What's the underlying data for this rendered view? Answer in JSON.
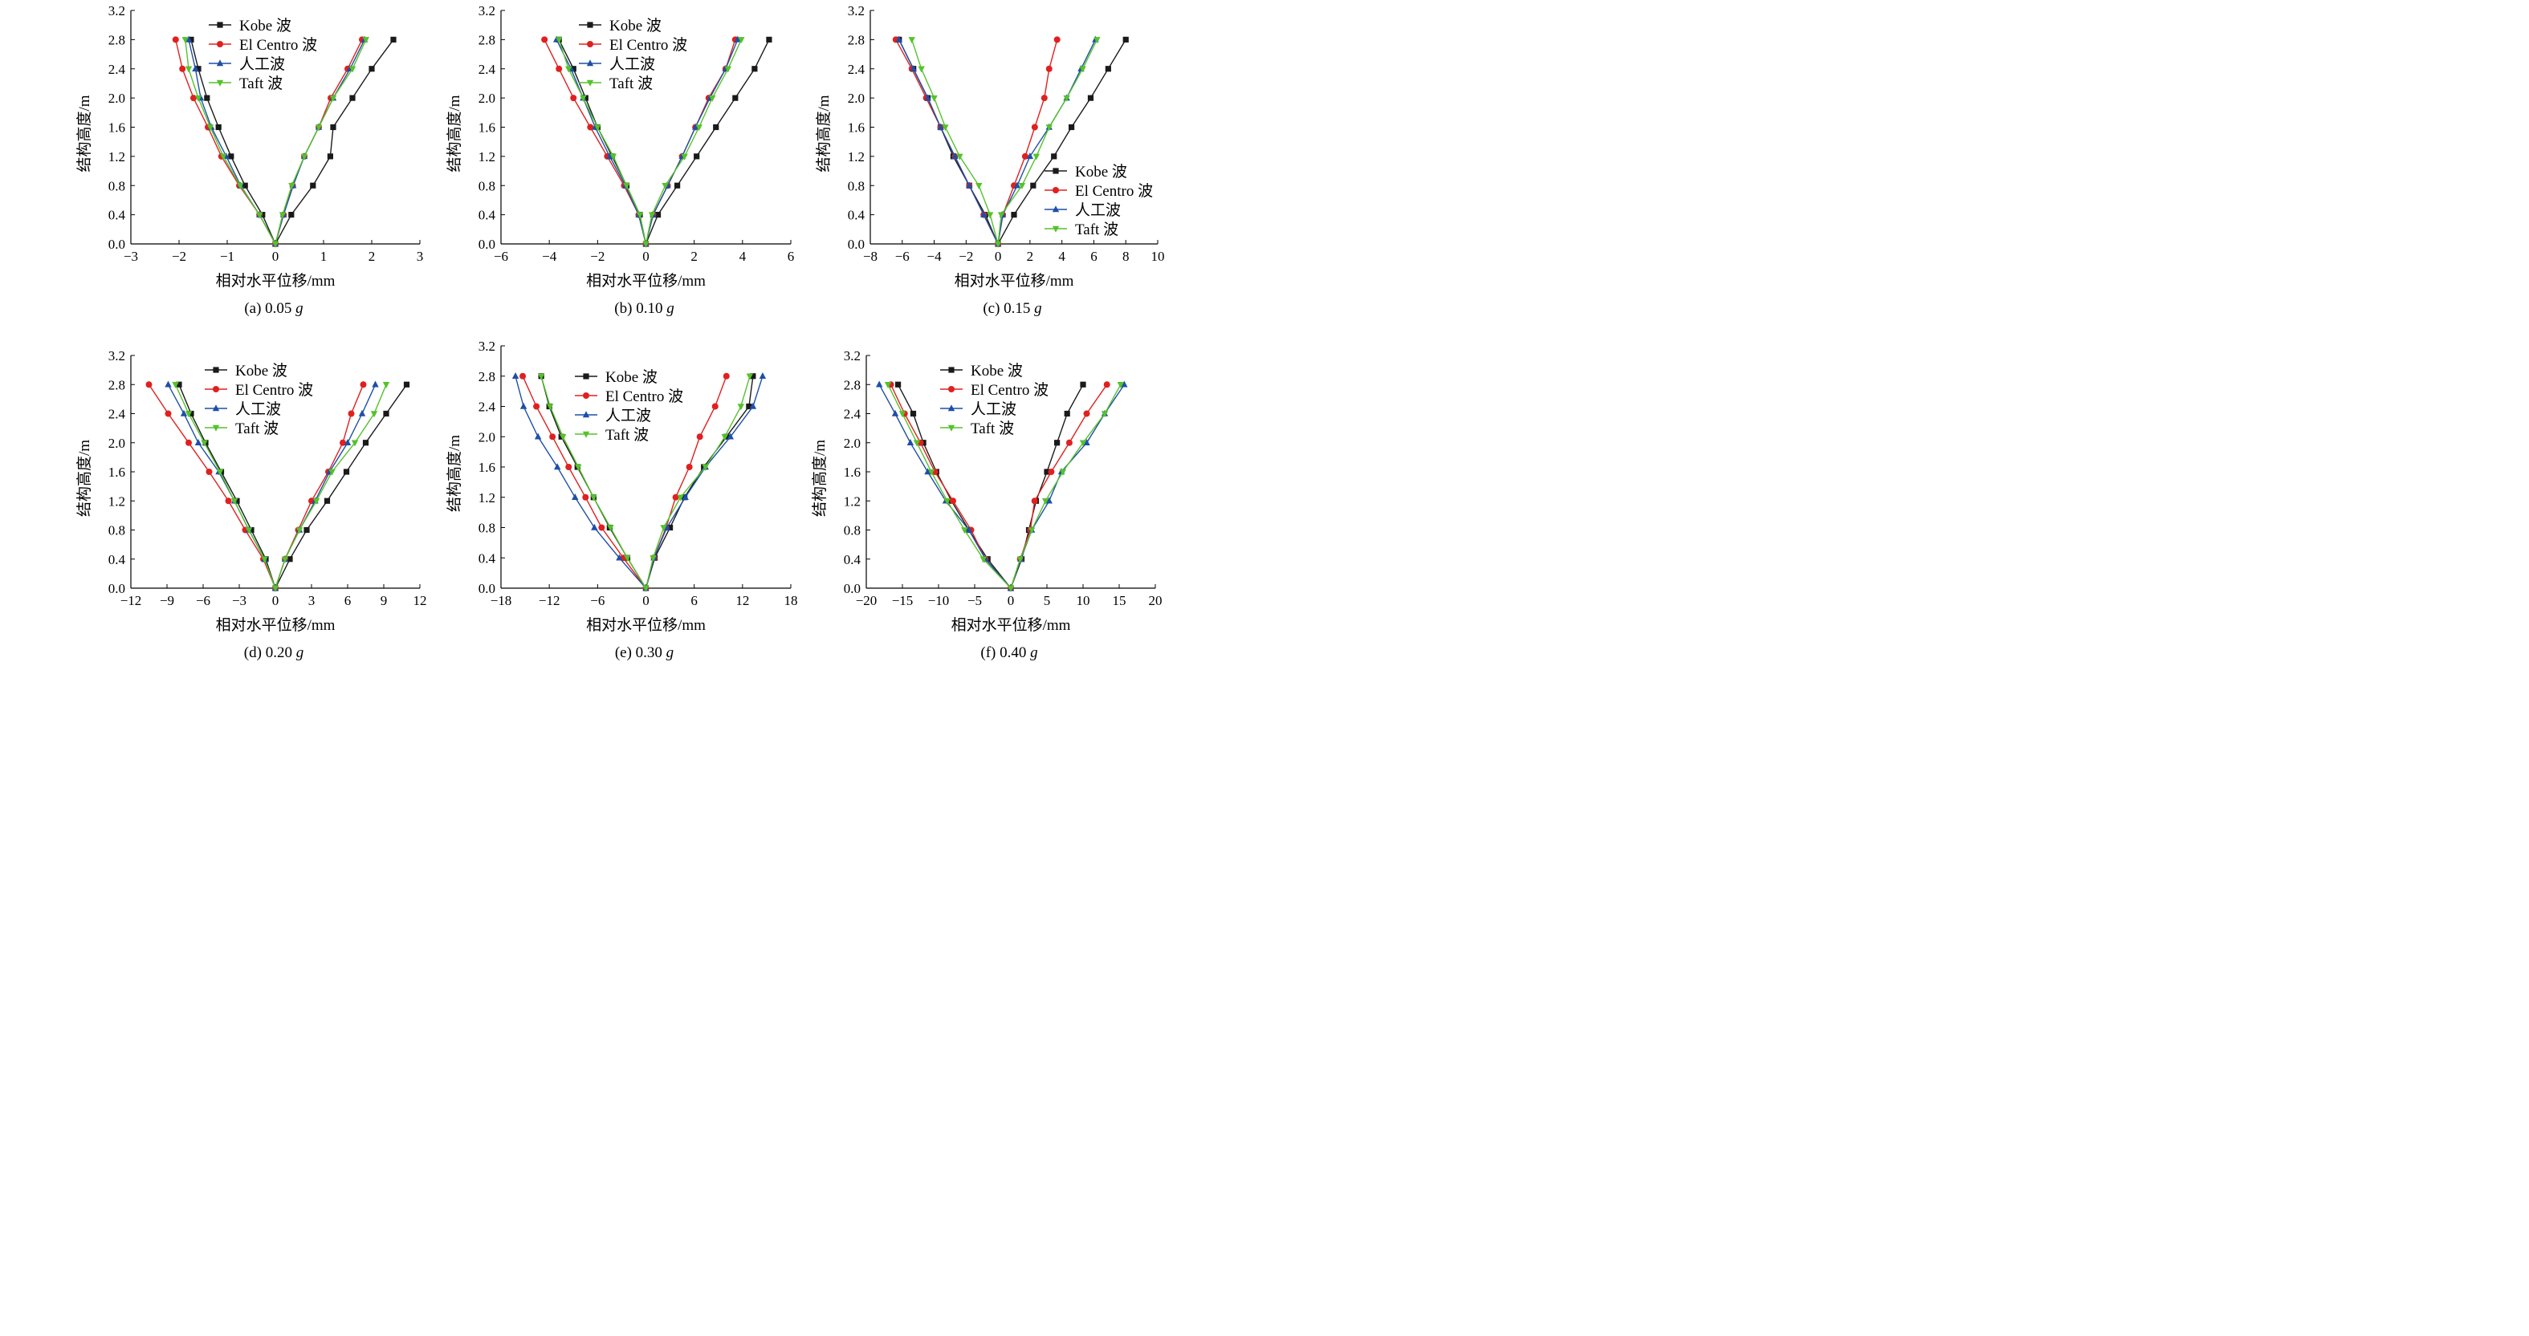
{
  "colors": {
    "kobe": "#1a1a1a",
    "elcentro": "#e02020",
    "artificial": "#1e4fa8",
    "taft": "#55c22b",
    "axis": "#000000"
  },
  "chart_data": [
    {
      "type": "line",
      "subtitle_prefix": "(a) 0.05",
      "subtitle_g": "g",
      "xlabel": "相对水平位移/mm",
      "ylabel": "结构高度/m",
      "xlim": [
        -3,
        3
      ],
      "ylim": [
        0,
        3.2
      ],
      "xticks": [
        -3,
        -2,
        -1,
        0,
        1,
        2,
        3
      ],
      "yticks": [
        "0.0",
        "0.4",
        "0.8",
        "1.2",
        "1.6",
        "2.0",
        "2.4",
        "2.8",
        "3.2"
      ],
      "legend_position": "top-left",
      "y": [
        0,
        0.4,
        0.8,
        1.2,
        1.6,
        2.0,
        2.4,
        2.8
      ],
      "series": [
        {
          "name": "Kobe 波",
          "marker": "square",
          "left": [
            0,
            -0.27,
            -0.63,
            -0.92,
            -1.18,
            -1.42,
            -1.6,
            -1.75
          ],
          "right": [
            0,
            0.33,
            0.78,
            1.14,
            1.2,
            1.6,
            2.0,
            2.45
          ]
        },
        {
          "name": "El Centro 波",
          "marker": "circle",
          "left": [
            0,
            -0.33,
            -0.75,
            -1.12,
            -1.4,
            -1.7,
            -1.93,
            -2.07
          ],
          "right": [
            0,
            0.17,
            0.36,
            0.6,
            0.9,
            1.15,
            1.5,
            1.8
          ]
        },
        {
          "name": "人工波",
          "marker": "triangle-up",
          "left": [
            0,
            -0.33,
            -0.72,
            -1.02,
            -1.33,
            -1.55,
            -1.66,
            -1.8
          ],
          "right": [
            0,
            0.17,
            0.37,
            0.6,
            0.9,
            1.2,
            1.55,
            1.85
          ]
        },
        {
          "name": "Taft 波",
          "marker": "triangle-down",
          "left": [
            0,
            -0.33,
            -0.73,
            -1.08,
            -1.35,
            -1.6,
            -1.8,
            -1.87
          ],
          "right": [
            0,
            0.15,
            0.34,
            0.6,
            0.9,
            1.2,
            1.6,
            1.88
          ]
        }
      ]
    },
    {
      "type": "line",
      "subtitle_prefix": "(b) 0.10",
      "subtitle_g": "g",
      "xlabel": "相对水平位移/mm",
      "ylabel": "结构高度/m",
      "xlim": [
        -6,
        6
      ],
      "ylim": [
        0,
        3.2
      ],
      "xticks": [
        -6,
        -4,
        -2,
        0,
        2,
        4,
        6
      ],
      "yticks": [
        "0.0",
        "0.4",
        "0.8",
        "1.2",
        "1.6",
        "2.0",
        "2.4",
        "2.8",
        "3.2"
      ],
      "legend_position": "top-left",
      "y": [
        0,
        0.4,
        0.8,
        1.2,
        1.6,
        2.0,
        2.4,
        2.8
      ],
      "series": [
        {
          "name": "Kobe 波",
          "marker": "square",
          "left": [
            0,
            -0.25,
            -0.8,
            -1.4,
            -2.0,
            -2.5,
            -3.0,
            -3.6
          ],
          "right": [
            0,
            0.5,
            1.3,
            2.1,
            2.9,
            3.7,
            4.5,
            5.1
          ]
        },
        {
          "name": "El Centro 波",
          "marker": "circle",
          "left": [
            0,
            -0.3,
            -0.9,
            -1.6,
            -2.3,
            -3.0,
            -3.6,
            -4.2
          ],
          "right": [
            0,
            0.3,
            0.9,
            1.5,
            2.05,
            2.6,
            3.3,
            3.7
          ]
        },
        {
          "name": "人工波",
          "marker": "triangle-up",
          "left": [
            0,
            -0.3,
            -0.85,
            -1.5,
            -2.1,
            -2.6,
            -3.1,
            -3.7
          ],
          "right": [
            0,
            0.3,
            0.9,
            1.5,
            2.05,
            2.65,
            3.3,
            3.8
          ]
        },
        {
          "name": "Taft 波",
          "marker": "triangle-down",
          "left": [
            0,
            -0.25,
            -0.8,
            -1.35,
            -2.0,
            -2.6,
            -3.2,
            -3.6
          ],
          "right": [
            0,
            0.25,
            0.8,
            1.6,
            2.2,
            2.75,
            3.4,
            3.95
          ]
        }
      ]
    },
    {
      "type": "line",
      "subtitle_prefix": "(c) 0.15",
      "subtitle_g": "g",
      "xlabel": "相对水平位移/mm",
      "ylabel": "结构高度/m",
      "xlim": [
        -8,
        10
      ],
      "ylim": [
        0,
        3.2
      ],
      "xticks": [
        -8,
        -6,
        -4,
        -2,
        0,
        2,
        4,
        6,
        8,
        10
      ],
      "yticks": [
        "0.0",
        "0.4",
        "0.8",
        "1.2",
        "1.6",
        "2.0",
        "2.4",
        "2.8",
        "3.2"
      ],
      "legend_position": "bottom-right",
      "y": [
        0,
        0.4,
        0.8,
        1.2,
        1.6,
        2.0,
        2.4,
        2.8
      ],
      "series": [
        {
          "name": "Kobe 波",
          "marker": "square",
          "left": [
            0,
            -0.8,
            -1.8,
            -2.8,
            -3.6,
            -4.4,
            -5.3,
            -6.2
          ],
          "right": [
            0,
            1.0,
            2.2,
            3.5,
            4.6,
            5.8,
            6.9,
            8.0
          ]
        },
        {
          "name": "El Centro 波",
          "marker": "circle",
          "left": [
            0,
            -0.9,
            -1.8,
            -2.7,
            -3.6,
            -4.5,
            -5.4,
            -6.4
          ],
          "right": [
            0,
            0.3,
            1.0,
            1.7,
            2.3,
            2.9,
            3.2,
            3.7
          ]
        },
        {
          "name": "人工波",
          "marker": "triangle-up",
          "left": [
            0,
            -0.9,
            -1.8,
            -2.7,
            -3.6,
            -4.4,
            -5.3,
            -6.2
          ],
          "right": [
            0,
            0.3,
            1.2,
            2.0,
            3.2,
            4.3,
            5.2,
            6.1
          ]
        },
        {
          "name": "Taft 波",
          "marker": "triangle-down",
          "left": [
            0,
            -0.5,
            -1.2,
            -2.4,
            -3.3,
            -4.0,
            -4.8,
            -5.4
          ],
          "right": [
            0,
            0.2,
            1.5,
            2.4,
            3.2,
            4.3,
            5.3,
            6.2
          ]
        }
      ]
    },
    {
      "type": "line",
      "subtitle_prefix": "(d) 0.20",
      "subtitle_g": "g",
      "xlabel": "相对水平位移/mm",
      "ylabel": "结构高度/m",
      "xlim": [
        -12,
        12
      ],
      "ylim": [
        0,
        3.2
      ],
      "xticks": [
        -12,
        -9,
        -6,
        -3,
        0,
        3,
        6,
        9,
        12
      ],
      "yticks": [
        "0.0",
        "0.4",
        "0.8",
        "1.2",
        "1.6",
        "2.0",
        "2.4",
        "2.8",
        "3.2"
      ],
      "legend_position": "top-left",
      "y": [
        0,
        0.4,
        0.8,
        1.2,
        1.6,
        2.0,
        2.4,
        2.8
      ],
      "series": [
        {
          "name": "Kobe 波",
          "marker": "square",
          "left": [
            0,
            -0.8,
            -2.0,
            -3.2,
            -4.5,
            -5.8,
            -7.0,
            -8.0
          ],
          "right": [
            0,
            1.2,
            2.6,
            4.3,
            5.9,
            7.5,
            9.2,
            10.9
          ]
        },
        {
          "name": "El Centro 波",
          "marker": "circle",
          "left": [
            0,
            -1.0,
            -2.5,
            -3.9,
            -5.5,
            -7.2,
            -8.9,
            -10.5
          ],
          "right": [
            0,
            0.8,
            1.9,
            3.0,
            4.4,
            5.6,
            6.3,
            7.3
          ]
        },
        {
          "name": "人工波",
          "marker": "triangle-up",
          "left": [
            0,
            -0.9,
            -2.2,
            -3.4,
            -4.7,
            -6.4,
            -7.6,
            -8.9
          ],
          "right": [
            0,
            0.8,
            2.0,
            3.3,
            4.5,
            6.0,
            7.2,
            8.3
          ]
        },
        {
          "name": "Taft 波",
          "marker": "triangle-down",
          "left": [
            0,
            -0.9,
            -2.2,
            -3.4,
            -4.6,
            -5.9,
            -7.2,
            -8.3
          ],
          "right": [
            0,
            0.8,
            2.0,
            3.4,
            4.7,
            6.6,
            8.2,
            9.2
          ]
        }
      ]
    },
    {
      "type": "line",
      "subtitle_prefix": "(e) 0.30",
      "subtitle_g": "g",
      "xlabel": "相对水平位移/mm",
      "ylabel": "结构高度/m",
      "xlim": [
        -18,
        18
      ],
      "ylim": [
        0,
        3.2
      ],
      "xticks": [
        -18,
        -12,
        -6,
        0,
        6,
        12,
        18
      ],
      "yticks": [
        "0.0",
        "0.4",
        "0.8",
        "1.2",
        "1.6",
        "2.0",
        "2.4",
        "2.8",
        "3.2"
      ],
      "legend_position": "top-left",
      "y": [
        0,
        0.4,
        0.8,
        1.2,
        1.6,
        2.0,
        2.4,
        2.8
      ],
      "series": [
        {
          "name": "Kobe 波",
          "marker": "square",
          "left": [
            0,
            -2.3,
            -4.5,
            -6.5,
            -8.5,
            -10.5,
            -12.0,
            -13.0
          ],
          "right": [
            0,
            1.1,
            3.0,
            4.8,
            7.2,
            10.0,
            12.8,
            13.3
          ]
        },
        {
          "name": "El Centro 波",
          "marker": "circle",
          "left": [
            0,
            -2.8,
            -5.5,
            -7.5,
            -9.6,
            -11.6,
            -13.6,
            -15.3
          ],
          "right": [
            0,
            1.0,
            2.5,
            3.7,
            5.4,
            6.7,
            8.6,
            10.0
          ]
        },
        {
          "name": "人工波",
          "marker": "triangle-up",
          "left": [
            0,
            -3.3,
            -6.4,
            -8.8,
            -11.0,
            -13.4,
            -15.2,
            -16.2
          ],
          "right": [
            0,
            1.0,
            2.6,
            4.9,
            7.4,
            10.5,
            13.3,
            14.5
          ]
        },
        {
          "name": "Taft 波",
          "marker": "triangle-down",
          "left": [
            0,
            -2.3,
            -4.4,
            -6.5,
            -8.4,
            -10.3,
            -11.9,
            -13.0
          ],
          "right": [
            0,
            0.9,
            2.2,
            4.3,
            7.4,
            9.8,
            11.8,
            12.9
          ]
        }
      ]
    },
    {
      "type": "line",
      "subtitle_prefix": "(f) 0.40",
      "subtitle_g": "g",
      "xlabel": "相对水平位移/mm",
      "ylabel": "结构高度/m",
      "xlim": [
        -20,
        20
      ],
      "ylim": [
        0,
        3.2
      ],
      "xticks": [
        -20,
        -15,
        -10,
        -5,
        0,
        5,
        10,
        15,
        20
      ],
      "yticks": [
        "0.0",
        "0.4",
        "0.8",
        "1.2",
        "1.6",
        "2.0",
        "2.4",
        "2.8",
        "3.2"
      ],
      "legend_position": "top-left",
      "y": [
        0,
        0.4,
        0.8,
        1.2,
        1.6,
        2.0,
        2.4,
        2.8
      ],
      "series": [
        {
          "name": "Kobe 波",
          "marker": "square",
          "left": [
            0,
            -3.2,
            -5.8,
            -8.2,
            -10.3,
            -12.1,
            -13.5,
            -15.6
          ],
          "right": [
            0,
            1.5,
            2.5,
            3.5,
            5.0,
            6.4,
            7.8,
            10.0
          ]
        },
        {
          "name": "El Centro 波",
          "marker": "circle",
          "left": [
            0,
            -3.5,
            -5.5,
            -8.0,
            -10.5,
            -12.5,
            -14.7,
            -16.6
          ],
          "right": [
            0,
            1.3,
            2.7,
            3.3,
            5.6,
            8.1,
            10.5,
            13.3
          ]
        },
        {
          "name": "人工波",
          "marker": "triangle-up",
          "left": [
            0,
            -3.5,
            -5.8,
            -9.0,
            -11.5,
            -13.9,
            -16.0,
            -18.2
          ],
          "right": [
            0,
            1.4,
            2.9,
            5.3,
            7.0,
            10.5,
            13.0,
            15.7
          ]
        },
        {
          "name": "Taft 波",
          "marker": "triangle-down",
          "left": [
            0,
            -3.8,
            -6.4,
            -8.8,
            -11.0,
            -13.0,
            -15.0,
            -17.0
          ],
          "right": [
            0,
            1.3,
            2.9,
            4.8,
            7.2,
            10.0,
            13.0,
            15.2
          ]
        }
      ]
    }
  ]
}
